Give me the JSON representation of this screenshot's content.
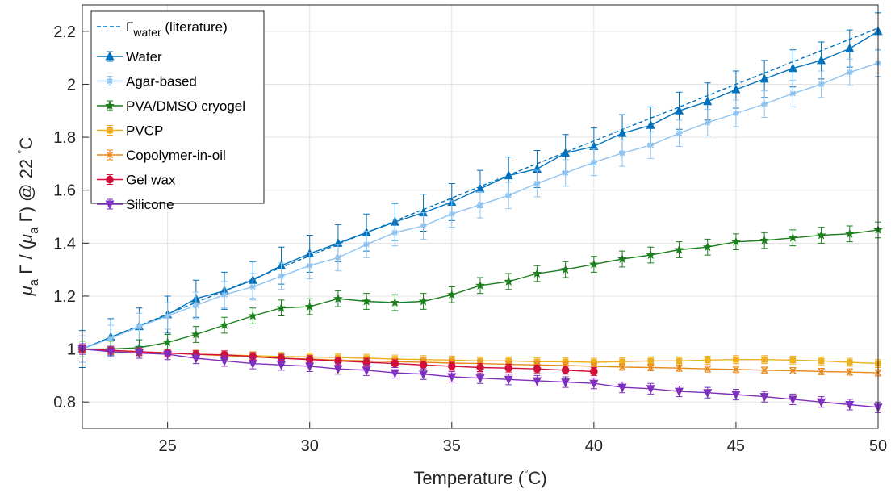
{
  "chart_data": {
    "type": "line",
    "title": "",
    "xlabel": "Temperature (°C)",
    "ylabel": "μ_a Γ / (μ_a Γ) @ 22 °C",
    "xlim": [
      22,
      50
    ],
    "ylim": [
      0.7,
      2.3
    ],
    "xticks": [
      25,
      30,
      35,
      40,
      45,
      50
    ],
    "yticks": [
      0.8,
      1,
      1.2,
      1.4,
      1.6,
      1.8,
      2,
      2.2
    ],
    "tick_labels_x": [
      "25",
      "30",
      "35",
      "40",
      "45",
      "50"
    ],
    "tick_labels_y": [
      "0.8",
      "1",
      "1.2",
      "1.4",
      "1.6",
      "1.8",
      "2",
      "2.2"
    ],
    "grid": true,
    "legend_position": "top-left",
    "literature": {
      "name": "Γwater (literature)",
      "color": "#0072BD",
      "x": [
        22,
        23,
        24,
        25,
        26,
        27,
        28,
        29,
        30,
        31,
        32,
        33,
        34,
        35,
        36,
        37,
        38,
        39,
        40,
        41,
        42,
        43,
        44,
        45,
        46,
        47,
        48,
        49,
        50
      ],
      "y": [
        1.0,
        1.045,
        1.088,
        1.132,
        1.176,
        1.22,
        1.264,
        1.308,
        1.352,
        1.396,
        1.44,
        1.484,
        1.527,
        1.57,
        1.614,
        1.657,
        1.7,
        1.743,
        1.786,
        1.829,
        1.872,
        1.914,
        1.957,
        2.0,
        2.042,
        2.085,
        2.127,
        2.17,
        2.212
      ]
    },
    "series": [
      {
        "name": "Water",
        "color": "#0072BD",
        "marker": "triangle-up",
        "x": [
          22,
          23,
          24,
          25,
          26,
          27,
          28,
          29,
          30,
          31,
          32,
          33,
          34,
          35,
          36,
          37,
          38,
          39,
          40,
          41,
          42,
          43,
          44,
          45,
          46,
          47,
          48,
          49,
          50
        ],
        "y": [
          1.0,
          1.045,
          1.085,
          1.13,
          1.19,
          1.22,
          1.26,
          1.315,
          1.36,
          1.4,
          1.44,
          1.48,
          1.515,
          1.555,
          1.605,
          1.655,
          1.68,
          1.74,
          1.765,
          1.815,
          1.845,
          1.9,
          1.935,
          1.98,
          2.02,
          2.06,
          2.09,
          2.135,
          2.2
        ],
        "err": [
          0.07,
          0.07,
          0.07,
          0.07,
          0.07,
          0.07,
          0.07,
          0.07,
          0.07,
          0.07,
          0.07,
          0.07,
          0.07,
          0.07,
          0.07,
          0.07,
          0.07,
          0.07,
          0.07,
          0.07,
          0.07,
          0.07,
          0.07,
          0.07,
          0.07,
          0.07,
          0.07,
          0.07,
          0.07
        ]
      },
      {
        "name": "Agar-based",
        "color": "#8FC3F0",
        "marker": "asterisk",
        "x": [
          22,
          23,
          24,
          25,
          26,
          27,
          28,
          29,
          30,
          31,
          32,
          33,
          34,
          35,
          36,
          37,
          38,
          39,
          40,
          41,
          42,
          43,
          44,
          45,
          46,
          47,
          48,
          49,
          50
        ],
        "y": [
          1.0,
          1.04,
          1.085,
          1.125,
          1.165,
          1.205,
          1.235,
          1.275,
          1.315,
          1.345,
          1.395,
          1.44,
          1.465,
          1.51,
          1.545,
          1.58,
          1.625,
          1.665,
          1.705,
          1.74,
          1.77,
          1.815,
          1.855,
          1.89,
          1.925,
          1.965,
          2.0,
          2.045,
          2.08
        ],
        "err": [
          0.05,
          0.05,
          0.05,
          0.05,
          0.05,
          0.05,
          0.05,
          0.05,
          0.05,
          0.05,
          0.05,
          0.05,
          0.05,
          0.05,
          0.05,
          0.05,
          0.05,
          0.05,
          0.05,
          0.05,
          0.05,
          0.05,
          0.05,
          0.05,
          0.05,
          0.05,
          0.05,
          0.05,
          0.05
        ]
      },
      {
        "name": "PVA/DMSO cryogel",
        "color": "#1B7F1B",
        "marker": "star",
        "x": [
          22,
          23,
          24,
          25,
          26,
          27,
          28,
          29,
          30,
          31,
          32,
          33,
          34,
          35,
          36,
          37,
          38,
          39,
          40,
          41,
          42,
          43,
          44,
          45,
          46,
          47,
          48,
          49,
          50
        ],
        "y": [
          1.0,
          1.0,
          1.005,
          1.025,
          1.055,
          1.09,
          1.125,
          1.155,
          1.16,
          1.19,
          1.18,
          1.175,
          1.18,
          1.205,
          1.24,
          1.255,
          1.285,
          1.3,
          1.32,
          1.34,
          1.355,
          1.375,
          1.385,
          1.405,
          1.41,
          1.42,
          1.43,
          1.435,
          1.45
        ],
        "err": [
          0.03,
          0.03,
          0.03,
          0.03,
          0.03,
          0.03,
          0.03,
          0.03,
          0.03,
          0.03,
          0.03,
          0.03,
          0.03,
          0.03,
          0.03,
          0.03,
          0.03,
          0.03,
          0.03,
          0.03,
          0.03,
          0.03,
          0.03,
          0.03,
          0.03,
          0.03,
          0.03,
          0.03,
          0.03
        ]
      },
      {
        "name": "PVCP",
        "color": "#EDB120",
        "marker": "square",
        "x": [
          22,
          23,
          24,
          25,
          26,
          27,
          28,
          29,
          30,
          31,
          32,
          33,
          34,
          35,
          36,
          37,
          38,
          39,
          40,
          41,
          42,
          43,
          44,
          45,
          46,
          47,
          48,
          49,
          50
        ],
        "y": [
          1.0,
          0.995,
          0.99,
          0.985,
          0.98,
          0.978,
          0.975,
          0.972,
          0.97,
          0.968,
          0.965,
          0.962,
          0.96,
          0.958,
          0.955,
          0.955,
          0.952,
          0.952,
          0.95,
          0.952,
          0.955,
          0.955,
          0.958,
          0.96,
          0.96,
          0.958,
          0.955,
          0.95,
          0.945
        ],
        "err": [
          0.015,
          0.015,
          0.015,
          0.015,
          0.015,
          0.015,
          0.015,
          0.015,
          0.015,
          0.015,
          0.015,
          0.015,
          0.015,
          0.015,
          0.015,
          0.015,
          0.015,
          0.015,
          0.015,
          0.015,
          0.015,
          0.015,
          0.015,
          0.015,
          0.015,
          0.015,
          0.015,
          0.015,
          0.015
        ]
      },
      {
        "name": "Copolymer-in-oil",
        "color": "#E8891C",
        "marker": "x",
        "x": [
          22,
          23,
          24,
          25,
          26,
          27,
          28,
          29,
          30,
          31,
          32,
          33,
          34,
          35,
          36,
          37,
          38,
          39,
          40,
          41,
          42,
          43,
          44,
          45,
          46,
          47,
          48,
          49,
          50
        ],
        "y": [
          1.0,
          0.995,
          0.99,
          0.985,
          0.98,
          0.975,
          0.97,
          0.965,
          0.962,
          0.958,
          0.955,
          0.952,
          0.95,
          0.947,
          0.945,
          0.942,
          0.94,
          0.938,
          0.935,
          0.932,
          0.93,
          0.928,
          0.925,
          0.923,
          0.92,
          0.918,
          0.915,
          0.913,
          0.91
        ],
        "err": [
          0.012,
          0.012,
          0.012,
          0.012,
          0.012,
          0.012,
          0.012,
          0.012,
          0.012,
          0.012,
          0.012,
          0.012,
          0.012,
          0.012,
          0.012,
          0.012,
          0.012,
          0.012,
          0.012,
          0.012,
          0.012,
          0.012,
          0.012,
          0.012,
          0.012,
          0.012,
          0.012,
          0.012,
          0.012
        ]
      },
      {
        "name": "Gel wax",
        "color": "#D0103A",
        "marker": "circle",
        "x": [
          22,
          23,
          24,
          25,
          26,
          27,
          28,
          29,
          30,
          31,
          32,
          33,
          34,
          35,
          36,
          37,
          38,
          39,
          40
        ],
        "y": [
          1.0,
          0.995,
          0.99,
          0.985,
          0.98,
          0.978,
          0.972,
          0.965,
          0.96,
          0.955,
          0.95,
          0.945,
          0.94,
          0.935,
          0.93,
          0.928,
          0.925,
          0.92,
          0.915
        ],
        "err": [
          0.015,
          0.015,
          0.015,
          0.015,
          0.015,
          0.015,
          0.015,
          0.015,
          0.015,
          0.015,
          0.015,
          0.015,
          0.015,
          0.015,
          0.015,
          0.015,
          0.015,
          0.015,
          0.015
        ]
      },
      {
        "name": "Silicone",
        "color": "#7E2FBE",
        "marker": "triangle-down",
        "x": [
          22,
          23,
          24,
          25,
          26,
          27,
          28,
          29,
          30,
          31,
          32,
          33,
          34,
          35,
          36,
          37,
          38,
          39,
          40,
          41,
          42,
          43,
          44,
          45,
          46,
          47,
          48,
          49,
          50
        ],
        "y": [
          1.0,
          0.99,
          0.985,
          0.98,
          0.965,
          0.955,
          0.945,
          0.94,
          0.935,
          0.925,
          0.92,
          0.91,
          0.905,
          0.895,
          0.89,
          0.885,
          0.88,
          0.875,
          0.87,
          0.855,
          0.85,
          0.84,
          0.835,
          0.828,
          0.82,
          0.81,
          0.8,
          0.79,
          0.78
        ],
        "err": [
          0.02,
          0.02,
          0.02,
          0.02,
          0.02,
          0.02,
          0.02,
          0.02,
          0.02,
          0.02,
          0.02,
          0.02,
          0.02,
          0.02,
          0.02,
          0.02,
          0.02,
          0.02,
          0.02,
          0.02,
          0.02,
          0.02,
          0.02,
          0.02,
          0.02,
          0.02,
          0.02,
          0.02,
          0.02
        ]
      }
    ]
  }
}
